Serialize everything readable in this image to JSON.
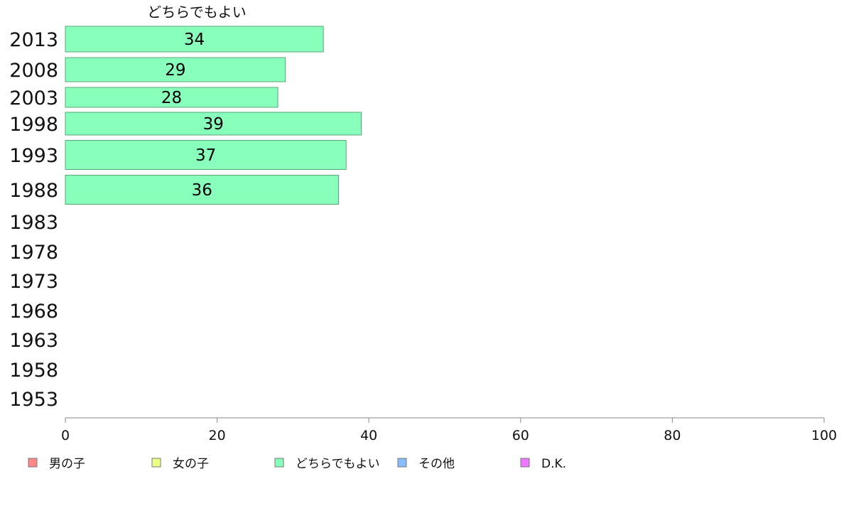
{
  "chart_data": {
    "type": "bar",
    "orientation": "horizontal",
    "series_title": "どちらでもよい",
    "categories": [
      "2013",
      "2008",
      "2003",
      "1998",
      "1993",
      "1988",
      "1983",
      "1978",
      "1973",
      "1968",
      "1963",
      "1958",
      "1953"
    ],
    "series": [
      {
        "name": "どちらでもよい",
        "color": "#88ffbb",
        "values": [
          34,
          29,
          28,
          39,
          37,
          36,
          null,
          null,
          null,
          null,
          null,
          null,
          null
        ]
      }
    ],
    "xlim": [
      0,
      100
    ],
    "xticks": [
      0,
      20,
      40,
      60,
      80,
      100
    ],
    "grid": false,
    "legend": {
      "placement": "bottom",
      "items": [
        {
          "label": "男の子",
          "color": "#ff8888"
        },
        {
          "label": "女の子",
          "color": "#eeff88"
        },
        {
          "label": "どちらでもよい",
          "color": "#88ffbb"
        },
        {
          "label": "その他",
          "color": "#88bbff"
        },
        {
          "label": "D.K.",
          "color": "#ee77ff"
        }
      ]
    }
  }
}
